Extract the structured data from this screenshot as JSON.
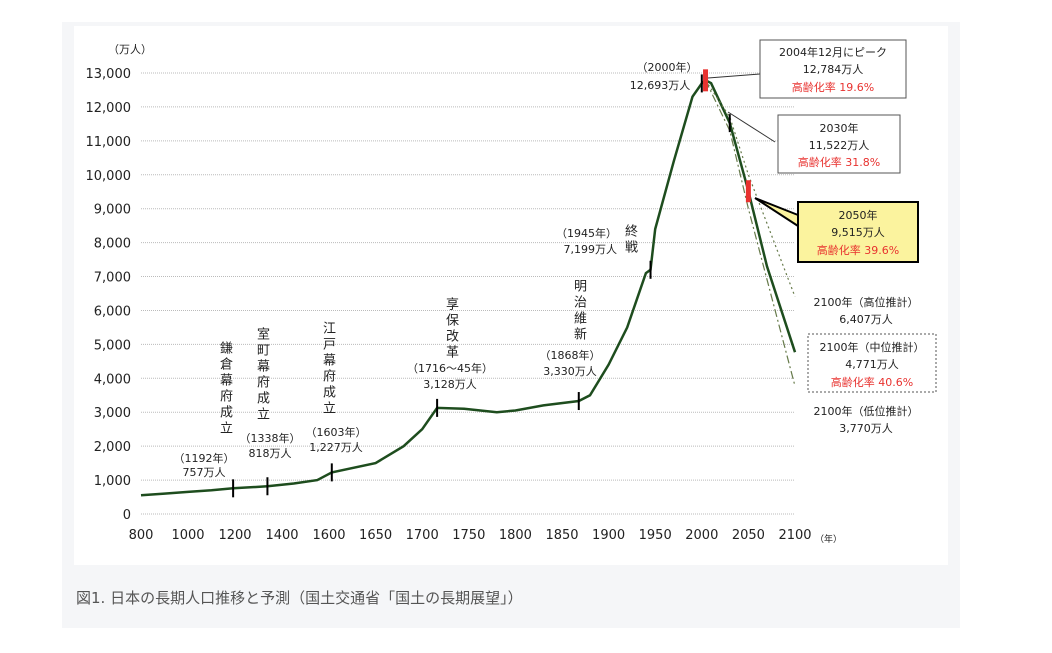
{
  "caption": "図1. 日本の長期人口推移と予測（国土交通省「国土の長期展望」）",
  "chart_data": {
    "type": "line",
    "ylabel": "（万人）",
    "xlabel": "（年）",
    "ylim": [
      0,
      13000
    ],
    "yticks": [
      "0",
      "1,000",
      "2,000",
      "3,000",
      "4,000",
      "5,000",
      "6,000",
      "7,000",
      "8,000",
      "9,000",
      "10,000",
      "11,000",
      "12,000",
      "13,000"
    ],
    "xticks": [
      800,
      1000,
      1200,
      1400,
      1600,
      1650,
      1700,
      1750,
      1800,
      1850,
      1900,
      1950,
      2000,
      2050,
      2100
    ],
    "grid": true,
    "line_color": "#1e4d1e",
    "series": [
      {
        "style": "solid",
        "x": [
          800,
          900,
          1000,
          1100,
          1192,
          1338,
          1450,
          1550,
          1603,
          1650,
          1680,
          1700,
          1716,
          1745,
          1780,
          1800,
          1830,
          1868,
          1880,
          1900,
          1920,
          1940,
          1945,
          1950,
          1970,
          1990,
          2000,
          2004,
          2010,
          2030,
          2050,
          2070,
          2100
        ],
        "y": [
          550,
          600,
          650,
          700,
          757,
          818,
          900,
          1000,
          1227,
          1500,
          2000,
          2500,
          3128,
          3100,
          3000,
          3050,
          3200,
          3330,
          3500,
          4400,
          5500,
          7100,
          7199,
          8400,
          10400,
          12300,
          12693,
          12784,
          12700,
          11522,
          9515,
          7300,
          4771
        ]
      },
      {
        "style": "dotted",
        "x": [
          2004,
          2030,
          2050,
          2100
        ],
        "y": [
          12784,
          11700,
          10000,
          6407
        ]
      },
      {
        "style": "dashdot",
        "x": [
          2004,
          2030,
          2050,
          2100
        ],
        "y": [
          12784,
          11300,
          9000,
          3770
        ]
      }
    ],
    "markers": [
      {
        "x": 1192,
        "y": 757,
        "color": "#000"
      },
      {
        "x": 1338,
        "y": 818,
        "color": "#000"
      },
      {
        "x": 1603,
        "y": 1227,
        "color": "#000"
      },
      {
        "x": 1716,
        "y": 3128,
        "color": "#000"
      },
      {
        "x": 1868,
        "y": 3330,
        "color": "#000"
      },
      {
        "x": 1945,
        "y": 7199,
        "color": "#000"
      },
      {
        "x": 2000,
        "y": 12693,
        "color": "#000"
      },
      {
        "x": 2030,
        "y": 11522,
        "color": "#000"
      },
      {
        "x": 2004,
        "y": 12784,
        "color": "#e8322f"
      },
      {
        "x": 2050,
        "y": 9515,
        "color": "#e8322f"
      }
    ],
    "annotations": {
      "kamakura": {
        "event": "鎌倉幕府成立",
        "year": "（1192年）",
        "pop": "757万人"
      },
      "muromachi": {
        "event": "室町幕府成立",
        "year": "（1338年）",
        "pop": "818万人"
      },
      "edo": {
        "event": "江戸幕府成立",
        "year": "（1603年）",
        "pop": "1,227万人"
      },
      "kyoho": {
        "event": "享保改革",
        "year": "（1716～45年）",
        "pop": "3,128万人"
      },
      "meiji": {
        "event": "明治維新",
        "year": "（1868年）",
        "pop": "3,330万人"
      },
      "war": {
        "event": "終戦",
        "year": "（1945年）",
        "pop": "7,199万人"
      },
      "y2000": {
        "year": "（2000年）",
        "pop": "12,693万人"
      },
      "peak": {
        "line1": "2004年12月にピーク",
        "line2": "12,784万人",
        "aging": "高齢化率 19.6%"
      },
      "y2030": {
        "line1": "2030年",
        "line2": "11,522万人",
        "aging": "高齢化率 31.8%"
      },
      "y2050": {
        "line1": "2050年",
        "line2": "9,515万人",
        "aging": "高齢化率 39.6%"
      },
      "high": {
        "line1": "2100年（高位推計）",
        "line2": "6,407万人"
      },
      "mid": {
        "line1": "2100年（中位推計）",
        "line2": "4,771万人",
        "aging": "高齢化率 40.6%"
      },
      "low": {
        "line1": "2100年（低位推計）",
        "line2": "3,770万人"
      }
    }
  }
}
